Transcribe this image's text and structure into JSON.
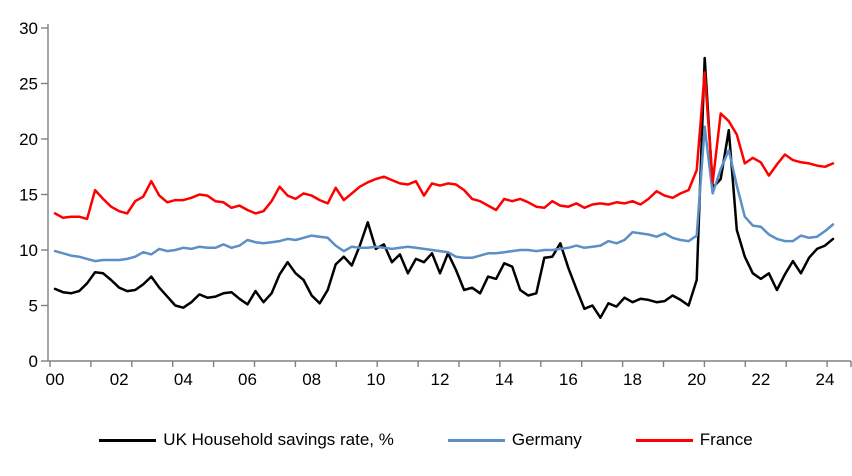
{
  "colors": {
    "axis": "#808080",
    "tick_text": "#000000",
    "uk": "#000000",
    "germany": "#5B8FC6",
    "france": "#FF0000",
    "background": "#FFFFFF"
  },
  "chart_data": {
    "type": "line",
    "title": "",
    "xlabel": "",
    "ylabel": "",
    "frequency": "quarterly",
    "x_start": "2000Q1",
    "x_end": "2024Q2",
    "ylim": [
      0,
      30
    ],
    "y_ticks": [
      0,
      5,
      10,
      15,
      20,
      25,
      30
    ],
    "x_tick_labels": [
      "00",
      "02",
      "04",
      "06",
      "08",
      "10",
      "12",
      "14",
      "16",
      "18",
      "20",
      "22",
      "24"
    ],
    "grid": false,
    "legend_position": "bottom",
    "series": [
      {
        "name": "UK Household savings rate, %",
        "color": "#000000",
        "values": [
          6.5,
          6.2,
          6.1,
          6.3,
          7.0,
          8.0,
          7.9,
          7.3,
          6.6,
          6.3,
          6.4,
          6.9,
          7.6,
          6.6,
          5.8,
          5.0,
          4.8,
          5.3,
          6.0,
          5.7,
          5.8,
          6.1,
          6.2,
          5.6,
          5.1,
          6.3,
          5.3,
          6.1,
          7.8,
          8.9,
          7.9,
          7.3,
          5.9,
          5.2,
          6.4,
          8.7,
          9.4,
          8.6,
          10.4,
          12.5,
          10.1,
          10.5,
          8.9,
          9.6,
          7.9,
          9.2,
          8.9,
          9.7,
          7.9,
          9.7,
          8.2,
          6.4,
          6.6,
          6.1,
          7.6,
          7.4,
          8.8,
          8.5,
          6.4,
          5.9,
          6.1,
          9.3,
          9.4,
          10.6,
          8.4,
          6.5,
          4.7,
          5.0,
          3.9,
          5.2,
          4.9,
          5.7,
          5.3,
          5.6,
          5.5,
          5.3,
          5.4,
          5.9,
          5.5,
          5.0,
          7.3,
          27.3,
          15.6,
          16.4,
          20.8,
          11.8,
          9.4,
          7.9,
          7.4,
          7.9,
          6.4,
          7.8,
          9.0,
          7.9,
          9.3,
          10.1,
          10.4,
          11.0
        ]
      },
      {
        "name": "Germany",
        "color": "#5B8FC6",
        "values": [
          9.9,
          9.7,
          9.5,
          9.4,
          9.2,
          9.0,
          9.1,
          9.1,
          9.1,
          9.2,
          9.4,
          9.8,
          9.6,
          10.1,
          9.9,
          10.0,
          10.2,
          10.1,
          10.3,
          10.2,
          10.2,
          10.5,
          10.2,
          10.4,
          10.9,
          10.7,
          10.6,
          10.7,
          10.8,
          11.0,
          10.9,
          11.1,
          11.3,
          11.2,
          11.1,
          10.4,
          9.9,
          10.3,
          10.2,
          10.2,
          10.3,
          10.2,
          10.1,
          10.2,
          10.3,
          10.2,
          10.1,
          10.0,
          9.9,
          9.8,
          9.4,
          9.3,
          9.3,
          9.5,
          9.7,
          9.7,
          9.8,
          9.9,
          10.0,
          10.0,
          9.9,
          10.0,
          10.0,
          10.1,
          10.2,
          10.4,
          10.2,
          10.3,
          10.4,
          10.8,
          10.6,
          10.9,
          11.6,
          11.5,
          11.4,
          11.2,
          11.5,
          11.1,
          10.9,
          10.8,
          11.3,
          21.1,
          15.1,
          17.3,
          19.0,
          15.8,
          13.0,
          12.2,
          12.1,
          11.4,
          11.0,
          10.8,
          10.8,
          11.3,
          11.1,
          11.2,
          11.7,
          12.3
        ]
      },
      {
        "name": "France",
        "color": "#FF0000",
        "values": [
          13.3,
          12.9,
          13.0,
          13.0,
          12.8,
          15.4,
          14.6,
          13.9,
          13.5,
          13.3,
          14.4,
          14.8,
          16.2,
          14.9,
          14.3,
          14.5,
          14.5,
          14.7,
          15.0,
          14.9,
          14.4,
          14.3,
          13.8,
          14.0,
          13.6,
          13.3,
          13.5,
          14.4,
          15.7,
          14.9,
          14.6,
          15.1,
          14.9,
          14.5,
          14.2,
          15.6,
          14.5,
          15.1,
          15.7,
          16.1,
          16.4,
          16.6,
          16.3,
          16.0,
          15.9,
          16.2,
          14.9,
          16.0,
          15.8,
          16.0,
          15.9,
          15.4,
          14.6,
          14.4,
          14.0,
          13.6,
          14.6,
          14.4,
          14.6,
          14.3,
          13.9,
          13.8,
          14.4,
          14.0,
          13.9,
          14.2,
          13.8,
          14.1,
          14.2,
          14.1,
          14.3,
          14.2,
          14.4,
          14.1,
          14.6,
          15.3,
          14.9,
          14.7,
          15.1,
          15.4,
          17.2,
          26.0,
          16.1,
          22.3,
          21.6,
          20.4,
          17.8,
          18.3,
          17.9,
          16.7,
          17.7,
          18.6,
          18.1,
          17.9,
          17.8,
          17.6,
          17.5,
          17.8
        ]
      }
    ]
  }
}
